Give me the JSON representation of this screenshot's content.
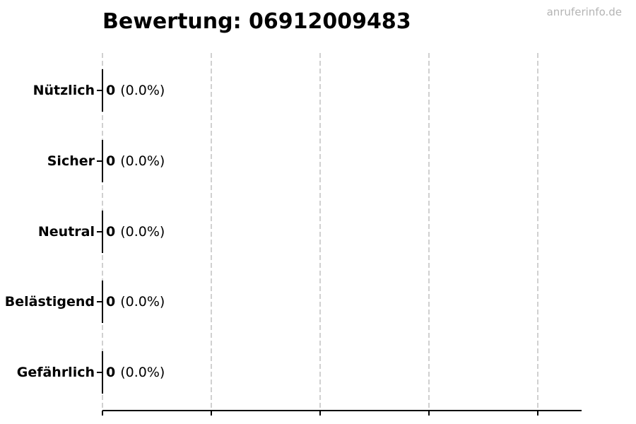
{
  "title": "Bewertung: 06912009483",
  "watermark": "anruferinfo.de",
  "colors": {
    "background": "#ffffff",
    "text": "#000000",
    "axis": "#000000",
    "grid": "#d0d0d0",
    "watermark": "#b4b4b4"
  },
  "chart_data": {
    "type": "bar",
    "orientation": "horizontal",
    "title": "Bewertung: 06912009483",
    "categories": [
      "Nützlich",
      "Sicher",
      "Neutral",
      "Belästigend",
      "Gefährlich"
    ],
    "values": [
      0,
      0,
      0,
      0,
      0
    ],
    "percentages": [
      0.0,
      0.0,
      0.0,
      0.0,
      0.0
    ],
    "value_labels": [
      "0",
      "0",
      "0",
      "0",
      "0"
    ],
    "pct_labels": [
      "(0.0%)",
      "(0.0%)",
      "(0.0%)",
      "(0.0%)",
      "(0.0%)"
    ],
    "xlabel": "",
    "ylabel": "",
    "x_axis": {
      "tick_count": 5,
      "tick_labels_visible": false
    },
    "grid": "vertical-dashed",
    "legend": false
  }
}
